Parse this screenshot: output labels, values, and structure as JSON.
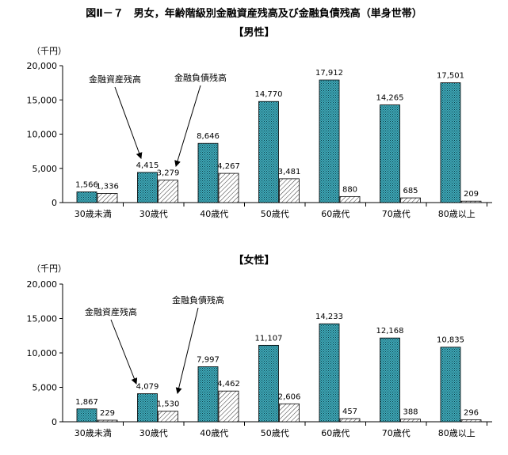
{
  "figure_title": "図Ⅱ－７　男女，年齢階級別金融資産残高及び金融負債残高（単身世帯）",
  "chart_data": [
    {
      "type": "bar",
      "panel_label": "【男性】",
      "unit_label": "（千円）",
      "ylim": [
        0,
        20000
      ],
      "yticks": [
        "0",
        "5,000",
        "10,000",
        "15,000",
        "20,000"
      ],
      "categories": [
        "30歳未満",
        "30歳代",
        "40歳代",
        "50歳代",
        "60歳代",
        "70歳代",
        "80歳以上"
      ],
      "series": [
        {
          "name": "金融資産残高",
          "values": [
            1566,
            4415,
            8646,
            14770,
            17912,
            14265,
            17501
          ],
          "labels": [
            "1,566",
            "4,415",
            "8,646",
            "14,770",
            "17,912",
            "14,265",
            "17,501"
          ]
        },
        {
          "name": "金融負債残高",
          "values": [
            1336,
            3279,
            4267,
            3481,
            880,
            685,
            209
          ],
          "labels": [
            "1,336",
            "3,279",
            "4,267",
            "3,481",
            "880",
            "685",
            "209"
          ]
        }
      ],
      "legend": "arrow annotations on 30歳代 bars"
    },
    {
      "type": "bar",
      "panel_label": "【女性】",
      "unit_label": "（千円）",
      "ylim": [
        0,
        20000
      ],
      "yticks": [
        "0",
        "5,000",
        "10,000",
        "15,000",
        "20,000"
      ],
      "categories": [
        "30歳未満",
        "30歳代",
        "40歳代",
        "50歳代",
        "60歳代",
        "70歳代",
        "80歳以上"
      ],
      "series": [
        {
          "name": "金融資産残高",
          "values": [
            1867,
            4079,
            7997,
            11107,
            14233,
            12168,
            10835
          ],
          "labels": [
            "1,867",
            "4,079",
            "7,997",
            "11,107",
            "14,233",
            "12,168",
            "10,835"
          ]
        },
        {
          "name": "金融負債残高",
          "values": [
            229,
            1530,
            4462,
            2606,
            457,
            388,
            296
          ],
          "labels": [
            "229",
            "1,530",
            "4,462",
            "2,606",
            "457",
            "388",
            "296"
          ]
        }
      ],
      "legend": "arrow annotations on 30歳代 bars"
    }
  ],
  "colors": {
    "asset_fill": "#3fa9b8",
    "asset_dot": "#0d3d48",
    "debt_hatch": "#333333",
    "axis": "#000000"
  }
}
